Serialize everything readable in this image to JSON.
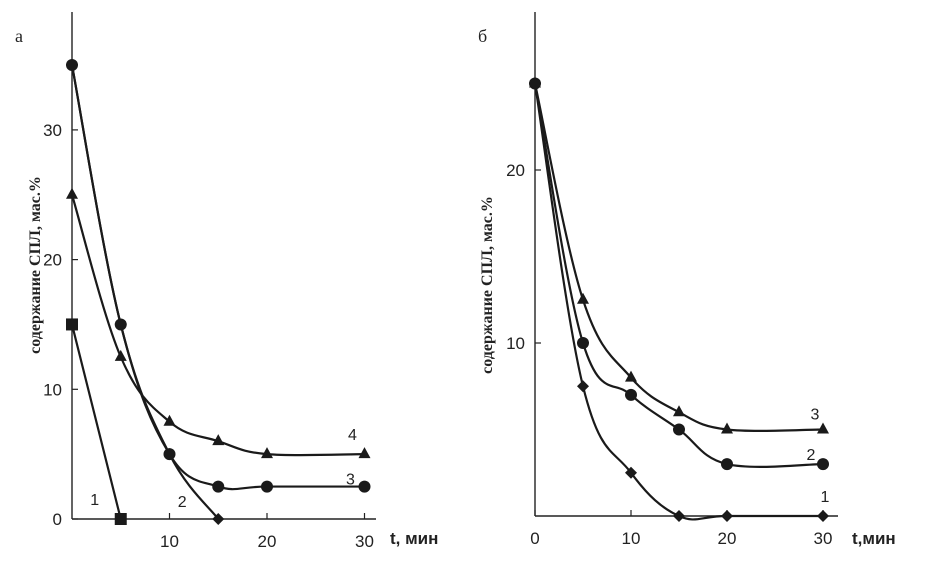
{
  "chart_data": [
    {
      "type": "line",
      "panel_label": "а",
      "xlabel": "t, мин",
      "ylabel": "содержание СПЛ, мас.%",
      "xlim": [
        0,
        32
      ],
      "ylim": [
        0,
        39
      ],
      "x_ticks": [
        "10",
        "20",
        "30"
      ],
      "y_ticks": [
        "0",
        "10",
        "20",
        "30"
      ],
      "grid": false,
      "series": [
        {
          "name": "1",
          "marker": "square",
          "x": [
            0,
            5
          ],
          "y": [
            15,
            0
          ]
        },
        {
          "name": "2",
          "marker": "diamond",
          "x": [
            0,
            5,
            10,
            15
          ],
          "y": [
            35,
            15,
            5,
            0
          ]
        },
        {
          "name": "3",
          "marker": "circle",
          "x": [
            0,
            5,
            10,
            15,
            20,
            30
          ],
          "y": [
            35,
            15,
            5,
            2.5,
            2.5,
            2.5
          ]
        },
        {
          "name": "4",
          "marker": "triangle",
          "x": [
            0,
            5,
            10,
            15,
            20,
            30
          ],
          "y": [
            25,
            12.5,
            7.5,
            6,
            5,
            5
          ]
        }
      ]
    },
    {
      "type": "line",
      "panel_label": "б",
      "xlabel": "t,мин",
      "ylabel": "содержание СПЛ, мас.%",
      "xlim": [
        0,
        32
      ],
      "ylim": [
        0,
        29
      ],
      "x_ticks": [
        "0",
        "10",
        "20",
        "30"
      ],
      "y_ticks": [
        "10",
        "20"
      ],
      "grid": false,
      "series": [
        {
          "name": "1",
          "marker": "diamond",
          "x": [
            0,
            5,
            10,
            15,
            20,
            30
          ],
          "y": [
            25,
            7.5,
            2.5,
            0,
            0,
            0
          ]
        },
        {
          "name": "2",
          "marker": "circle",
          "x": [
            0,
            5,
            10,
            15,
            20,
            30
          ],
          "y": [
            25,
            10,
            7,
            5,
            3,
            3
          ]
        },
        {
          "name": "3",
          "marker": "triangle",
          "x": [
            0,
            5,
            10,
            15,
            20,
            30
          ],
          "y": [
            25,
            12.5,
            8,
            6,
            5,
            5
          ]
        }
      ]
    }
  ]
}
